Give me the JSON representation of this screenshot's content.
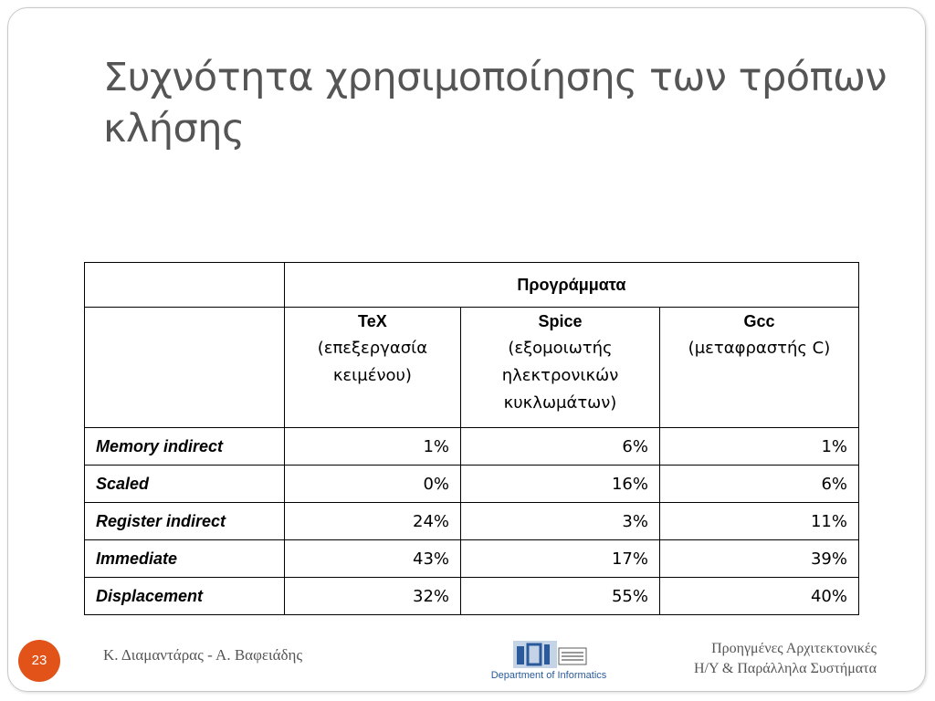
{
  "slide": {
    "title": "Συχνότητα χρησιμοποίησης των τρόπων κλήσης",
    "page_number": "23",
    "authors": "Κ. Διαμαντάρας - Α. Βαφειάδης",
    "course_line1": "Προηγμένες Αρχιτεκτονικές",
    "course_line2": "Η/Υ & Παράλληλα Συστήματα",
    "logo_caption": "Department of Informatics",
    "accent_color": "#e2531a"
  },
  "table": {
    "group_header": "Προγράμματα",
    "programs": [
      {
        "name": "TeX",
        "desc": "(επεξεργασία κειμένου)"
      },
      {
        "name": "Spice",
        "desc": "(εξομοιωτής ηλεκτρονικών κυκλωμάτων)"
      },
      {
        "name": "Gcc",
        "desc": "(μεταφραστής C)"
      }
    ],
    "rows": [
      {
        "label": "Memory indirect",
        "values": [
          "1%",
          "6%",
          "1%"
        ]
      },
      {
        "label": "Scaled",
        "values": [
          "0%",
          "16%",
          "6%"
        ]
      },
      {
        "label": "Register indirect",
        "values": [
          "24%",
          "3%",
          "11%"
        ]
      },
      {
        "label": "Immediate",
        "values": [
          "43%",
          "17%",
          "39%"
        ]
      },
      {
        "label": "Displacement",
        "values": [
          "32%",
          "55%",
          "40%"
        ]
      }
    ]
  }
}
